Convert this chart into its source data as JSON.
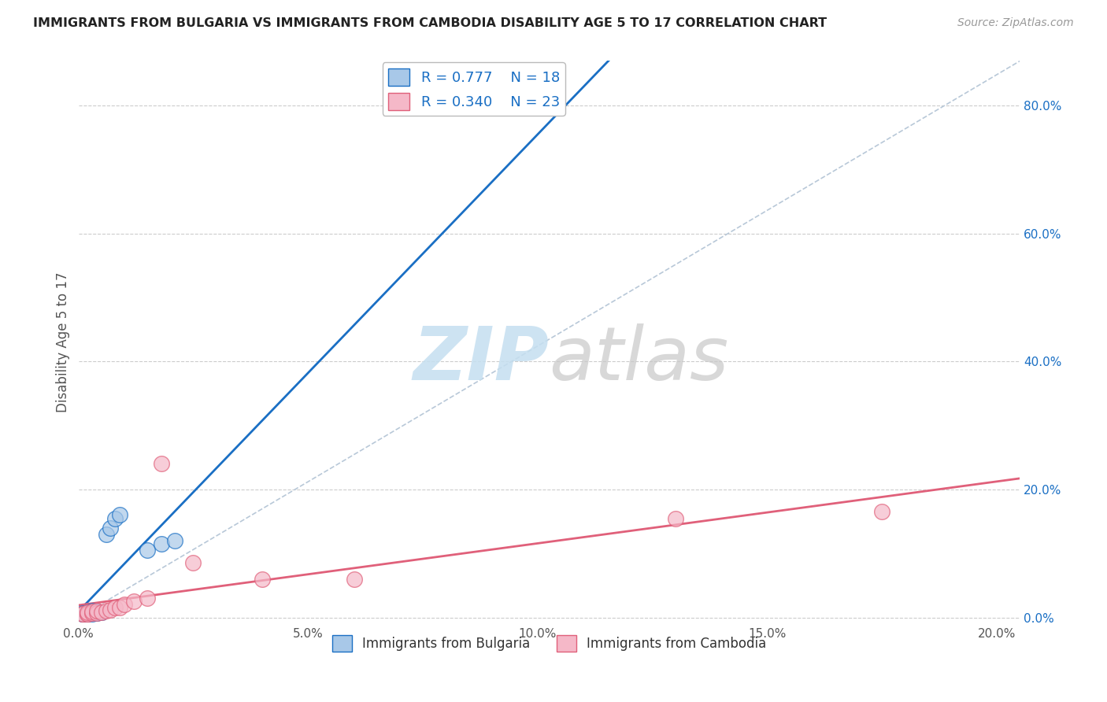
{
  "title": "IMMIGRANTS FROM BULGARIA VS IMMIGRANTS FROM CAMBODIA DISABILITY AGE 5 TO 17 CORRELATION CHART",
  "source": "Source: ZipAtlas.com",
  "ylabel": "Disability Age 5 to 17",
  "xlim": [
    0.0,
    0.205
  ],
  "ylim": [
    -0.01,
    0.87
  ],
  "xticks": [
    0.0,
    0.05,
    0.1,
    0.15,
    0.2
  ],
  "yticks": [
    0.0,
    0.2,
    0.4,
    0.6,
    0.8
  ],
  "xtick_labels": [
    "0.0%",
    "5.0%",
    "10.0%",
    "15.0%",
    "20.0%"
  ],
  "ytick_labels": [
    "0.0%",
    "20.0%",
    "40.0%",
    "60.0%",
    "80.0%"
  ],
  "bulgaria_color": "#a8c8e8",
  "cambodia_color": "#f5b8c8",
  "bulgaria_line_color": "#1a6fc4",
  "cambodia_line_color": "#e0607a",
  "ref_line_color": "#b8c8d8",
  "legend_R_bulgaria": "R = 0.777",
  "legend_N_bulgaria": "N = 18",
  "legend_R_cambodia": "R = 0.340",
  "legend_N_cambodia": "N = 23",
  "legend_label_bulgaria": "Immigrants from Bulgaria",
  "legend_label_cambodia": "Immigrants from Cambodia",
  "watermark_zip": "ZIP",
  "watermark_atlas": "atlas",
  "background_color": "#ffffff",
  "grid_color": "#cccccc",
  "bulgaria_x": [
    0.001,
    0.001,
    0.001,
    0.002,
    0.002,
    0.002,
    0.003,
    0.003,
    0.004,
    0.004,
    0.005,
    0.006,
    0.007,
    0.008,
    0.009,
    0.015,
    0.018,
    0.021
  ],
  "bulgaria_y": [
    0.005,
    0.006,
    0.007,
    0.005,
    0.007,
    0.008,
    0.006,
    0.01,
    0.007,
    0.009,
    0.008,
    0.13,
    0.14,
    0.155,
    0.16,
    0.105,
    0.115,
    0.12
  ],
  "cambodia_x": [
    0.001,
    0.001,
    0.002,
    0.002,
    0.002,
    0.003,
    0.003,
    0.004,
    0.004,
    0.005,
    0.006,
    0.007,
    0.008,
    0.009,
    0.01,
    0.012,
    0.015,
    0.018,
    0.025,
    0.04,
    0.06,
    0.13,
    0.175
  ],
  "cambodia_y": [
    0.005,
    0.006,
    0.005,
    0.006,
    0.008,
    0.007,
    0.009,
    0.007,
    0.01,
    0.008,
    0.01,
    0.012,
    0.015,
    0.015,
    0.02,
    0.025,
    0.03,
    0.24,
    0.085,
    0.06,
    0.06,
    0.155,
    0.165
  ]
}
